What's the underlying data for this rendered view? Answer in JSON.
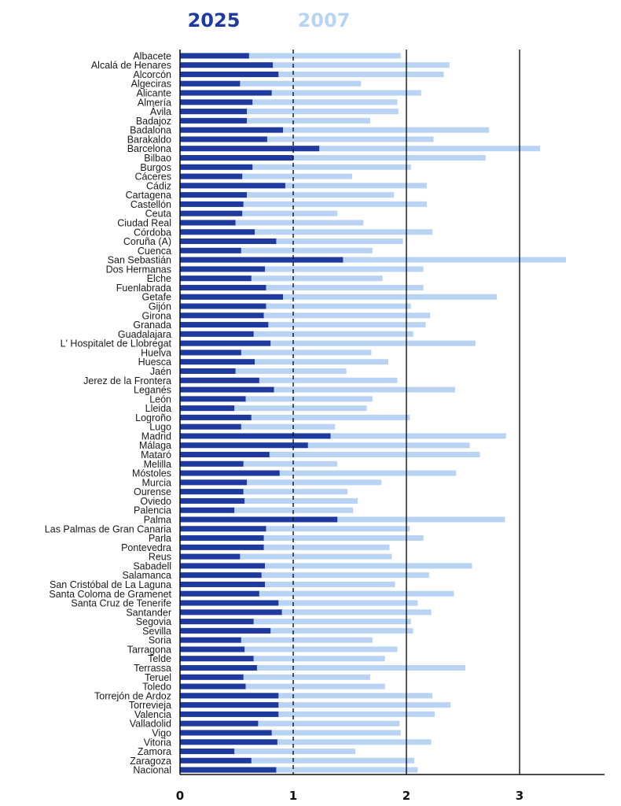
{
  "chart_data": {
    "type": "bar",
    "orientation": "horizontal",
    "series": [
      {
        "name": "2025",
        "color": "#1f3a9e",
        "values": [
          0.61,
          0.82,
          0.87,
          0.53,
          0.81,
          0.64,
          0.59,
          0.59,
          0.91,
          0.77,
          1.23,
          1.0,
          0.64,
          0.55,
          0.93,
          0.59,
          0.56,
          0.55,
          0.49,
          0.66,
          0.85,
          0.54,
          1.44,
          0.75,
          0.63,
          0.76,
          0.91,
          0.76,
          0.74,
          0.78,
          0.65,
          0.8,
          0.54,
          0.66,
          0.49,
          0.7,
          0.83,
          0.58,
          0.48,
          0.63,
          0.54,
          1.33,
          1.13,
          0.79,
          0.56,
          0.88,
          0.59,
          0.56,
          0.57,
          0.48,
          1.39,
          0.76,
          0.74,
          0.74,
          0.53,
          0.75,
          0.72,
          0.75,
          0.7,
          0.87,
          0.9,
          0.65,
          0.8,
          0.54,
          0.57,
          0.65,
          0.68,
          0.56,
          0.58,
          0.87,
          0.87,
          0.87,
          0.69,
          0.81,
          0.86,
          0.48,
          0.63,
          0.85
        ]
      },
      {
        "name": "2007",
        "color": "#b9d3f5",
        "values": [
          1.95,
          2.38,
          2.33,
          1.6,
          2.13,
          1.92,
          1.93,
          1.68,
          2.73,
          2.24,
          3.18,
          2.7,
          2.04,
          1.52,
          2.18,
          1.89,
          2.18,
          1.39,
          1.62,
          2.23,
          1.97,
          1.7,
          3.41,
          2.15,
          1.79,
          2.15,
          2.8,
          2.04,
          2.21,
          2.17,
          2.06,
          2.61,
          1.69,
          1.84,
          1.47,
          1.92,
          2.43,
          1.7,
          1.65,
          2.03,
          1.37,
          2.88,
          2.56,
          2.65,
          1.39,
          2.44,
          1.78,
          1.48,
          1.57,
          1.53,
          2.87,
          2.03,
          2.15,
          1.85,
          1.87,
          2.58,
          2.2,
          1.9,
          2.42,
          2.1,
          2.22,
          2.04,
          2.06,
          1.7,
          1.92,
          1.81,
          2.52,
          1.68,
          1.81,
          2.23,
          2.39,
          2.25,
          1.94,
          1.95,
          2.22,
          1.55,
          2.07,
          2.1
        ]
      }
    ],
    "categories": [
      "Albacete",
      "Alcalá de Henares",
      "Alcorcón",
      "Algeciras",
      "Alicante",
      "Almería",
      "Ávila",
      "Badajoz",
      "Badalona",
      "Barakaldo",
      "Barcelona",
      "Bilbao",
      "Burgos",
      "Cáceres",
      "Cádiz",
      "Cartagena",
      "Castellón",
      "Ceuta",
      "Ciudad Real",
      "Córdoba",
      "Coruña (A)",
      "Cuenca",
      "San Sebastián",
      "Dos Hermanas",
      "Elche",
      "Fuenlabrada",
      "Getafe",
      "Gijón",
      "Girona",
      "Granada",
      "Guadalajara",
      "L' Hospitalet de Llobregat",
      "Huelva",
      "Huesca",
      "Jaén",
      "Jerez de la Frontera",
      "Leganés",
      "León",
      "Lleida",
      "Logroño",
      "Lugo",
      "Madrid",
      "Málaga",
      "Mataró",
      "Melilla",
      "Móstoles",
      "Murcia",
      "Ourense",
      "Oviedo",
      "Palencia",
      "Palma",
      "Las Palmas de Gran Canaria",
      "Parla",
      "Pontevedra",
      "Reus",
      "Sabadell",
      "Salamanca",
      "San Cristóbal de La Laguna",
      "Santa Coloma de Gramenet",
      "Santa Cruz de Tenerife",
      "Santander",
      "Segovia",
      "Sevilla",
      "Soria",
      "Tarragona",
      "Telde",
      "Terrassa",
      "Teruel",
      "Toledo",
      "Torrejón de Ardoz",
      "Torrevieja",
      "Valencia",
      "Valladolid",
      "Vigo",
      "Vitoria",
      "Zamora",
      "Zaragoza",
      "Nacional"
    ],
    "highlighted": {
      "Barcelona": "#e0335a",
      "San Sebastián": "#e0335a",
      "Madrid": "#e0335a",
      "Palma": "#e0335a",
      "Valencia": "#e0335a",
      "Nacional": "#2ec4b6"
    },
    "xlim": [
      0,
      3.75
    ],
    "xticks": [
      "0",
      "1",
      "2",
      "3"
    ],
    "reference_lines": [
      1,
      2,
      3
    ],
    "legend": "top"
  }
}
